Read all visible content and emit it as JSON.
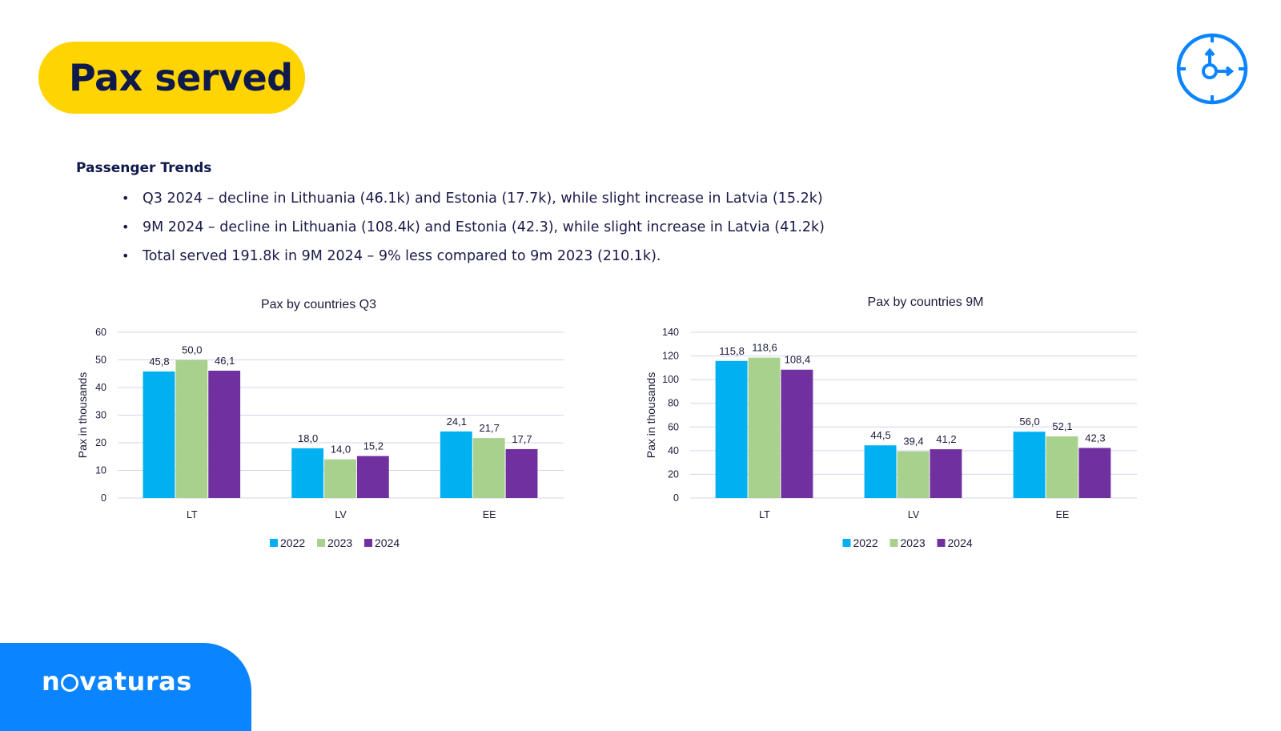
{
  "header": {
    "title": "Pax served"
  },
  "icons": {
    "top_right": "clock-icon",
    "footer_logo_glyph": "globe-icon"
  },
  "colors": {
    "title_pill": "#ffd400",
    "clock": "#0a84ff",
    "footer": "#0a84ff",
    "series_2022": "#00b0f0",
    "series_2023": "#a9d18e",
    "series_2024": "#7030a0"
  },
  "section": {
    "heading": "Passenger Trends",
    "bullets": [
      "Q3 2024 – decline in Lithuania  (46.1k) and Estonia (17.7k), while slight increase in Latvia (15.2k)",
      "9M 2024 – decline in Lithuania  (108.4k) and Estonia (42.3), while slight increase in Latvia (41.2k)",
      "Total served 191.8k in 9M 2024 – 9% less compared to 9m 2023 (210.1k)."
    ]
  },
  "footer": {
    "logo_pre": "n",
    "logo_post": "vaturas"
  },
  "chart_data": [
    {
      "type": "bar",
      "title": "Pax by countries Q3",
      "ylabel": "Pax in thousands",
      "xlabel": "",
      "categories": [
        "LT",
        "LV",
        "EE"
      ],
      "ylim": [
        0,
        60
      ],
      "yticks": [
        0,
        10,
        20,
        30,
        40,
        50,
        60
      ],
      "grid": true,
      "legend": "bottom",
      "series": [
        {
          "name": "2022",
          "values": [
            45.8,
            18.0,
            24.1
          ],
          "labels": [
            "45,8",
            "18,0",
            "24,1"
          ]
        },
        {
          "name": "2023",
          "values": [
            50.0,
            14.0,
            21.7
          ],
          "labels": [
            "50,0",
            "14,0",
            "21,7"
          ]
        },
        {
          "name": "2024",
          "values": [
            46.1,
            15.2,
            17.7
          ],
          "labels": [
            "46,1",
            "15,2",
            "17,7"
          ]
        }
      ]
    },
    {
      "type": "bar",
      "title": "Pax by countries 9M",
      "ylabel": "Pax in thousands",
      "xlabel": "",
      "categories": [
        "LT",
        "LV",
        "EE"
      ],
      "ylim": [
        0,
        140
      ],
      "yticks": [
        0,
        20,
        40,
        60,
        80,
        100,
        120,
        140
      ],
      "grid": true,
      "legend": "bottom",
      "series": [
        {
          "name": "2022",
          "values": [
            115.8,
            44.5,
            56.0
          ],
          "labels": [
            "115,8",
            "44,5",
            "56,0"
          ]
        },
        {
          "name": "2023",
          "values": [
            118.6,
            39.4,
            52.1
          ],
          "labels": [
            "118,6",
            "39,4",
            "52,1"
          ]
        },
        {
          "name": "2024",
          "values": [
            108.4,
            41.2,
            42.3
          ],
          "labels": [
            "108,4",
            "41,2",
            "42,3"
          ]
        }
      ]
    }
  ]
}
